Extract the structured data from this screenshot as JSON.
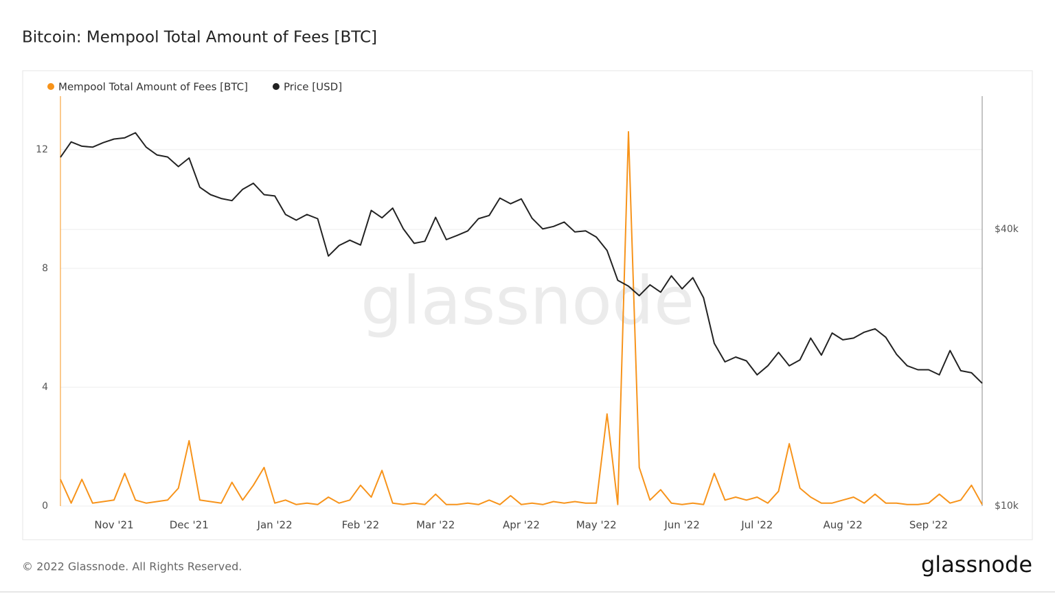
{
  "chart_data": {
    "type": "line",
    "title": "Bitcoin: Mempool Total Amount of Fees [BTC]",
    "watermark": "glassnode",
    "footer": "© 2022 Glassnode. All Rights Reserved.",
    "brand": "glassnode",
    "categories": [
      null,
      null,
      null,
      null,
      null,
      "Nov '21",
      null,
      null,
      null,
      null,
      null,
      null,
      "Dec '21",
      null,
      null,
      null,
      null,
      null,
      null,
      null,
      "Jan '22",
      null,
      null,
      null,
      null,
      null,
      null,
      null,
      "Feb '22",
      null,
      null,
      null,
      null,
      null,
      null,
      "Mar '22",
      null,
      null,
      null,
      null,
      null,
      null,
      null,
      "Apr '22",
      null,
      null,
      null,
      null,
      null,
      null,
      "May '22",
      null,
      null,
      null,
      null,
      null,
      null,
      null,
      "Jun '22",
      null,
      null,
      null,
      null,
      null,
      null,
      "Jul '22",
      null,
      null,
      null,
      null,
      null,
      null,
      null,
      "Aug '22",
      null,
      null,
      null,
      null,
      null,
      null,
      null,
      "Sep '22",
      null,
      null,
      null,
      null,
      null
    ],
    "series": [
      {
        "name": "Mempool Total Amount of Fees [BTC]",
        "color": "#f7931a",
        "values": [
          0.9,
          0.1,
          0.9,
          0.1,
          0.15,
          0.2,
          1.1,
          0.2,
          0.1,
          0.15,
          0.2,
          0.6,
          2.2,
          0.2,
          0.15,
          0.1,
          0.8,
          0.2,
          0.7,
          1.3,
          0.1,
          0.2,
          0.05,
          0.1,
          0.05,
          0.3,
          0.1,
          0.2,
          0.7,
          0.3,
          1.2,
          0.1,
          0.05,
          0.1,
          0.05,
          0.4,
          0.05,
          0.05,
          0.1,
          0.05,
          0.2,
          0.05,
          0.35,
          0.05,
          0.1,
          0.05,
          0.15,
          0.1,
          0.15,
          0.1,
          0.1,
          3.1,
          0.05,
          12.6,
          1.3,
          0.2,
          0.55,
          0.1,
          0.05,
          0.1,
          0.05,
          1.1,
          0.2,
          0.3,
          0.2,
          0.3,
          0.1,
          0.5,
          2.1,
          0.6,
          0.3,
          0.1,
          0.1,
          0.2,
          0.3,
          0.1,
          0.4,
          0.1,
          0.1,
          0.05,
          0.05,
          0.1,
          0.4,
          0.1,
          0.2,
          0.7,
          0.05
        ]
      },
      {
        "name": "Price [USD]",
        "color": "#222222",
        "axis": "y2",
        "values": [
          57400,
          62000,
          60700,
          60400,
          61800,
          62900,
          63300,
          64900,
          60400,
          58100,
          57500,
          54800,
          57200,
          49400,
          47600,
          46700,
          46200,
          48900,
          50400,
          47600,
          47300,
          43100,
          41900,
          43100,
          42200,
          35000,
          36900,
          37900,
          37000,
          44000,
          42400,
          44500,
          40100,
          37300,
          37700,
          42500,
          38000,
          38800,
          39700,
          42200,
          42900,
          46800,
          45500,
          46600,
          42300,
          40100,
          40600,
          41500,
          39500,
          39700,
          38500,
          36000,
          31000,
          30100,
          28700,
          30300,
          29200,
          31700,
          29700,
          31400,
          28400,
          22600,
          20600,
          21100,
          20700,
          19300,
          20200,
          21600,
          20200,
          20800,
          23200,
          21300,
          23800,
          23000,
          23200,
          23900,
          24300,
          23300,
          21400,
          20200,
          19800,
          19800,
          19300,
          21800,
          19700,
          19500,
          18500
        ]
      }
    ],
    "ylim": [
      0,
      13.8
    ],
    "yticks": [
      0,
      4,
      8,
      12
    ],
    "y2lim": [
      10000,
      78000
    ],
    "y2_log": true,
    "y2ticks": [
      {
        "value": 10000,
        "label": "$10k"
      },
      {
        "value": 40000,
        "label": "$40k"
      }
    ],
    "grid": true
  }
}
